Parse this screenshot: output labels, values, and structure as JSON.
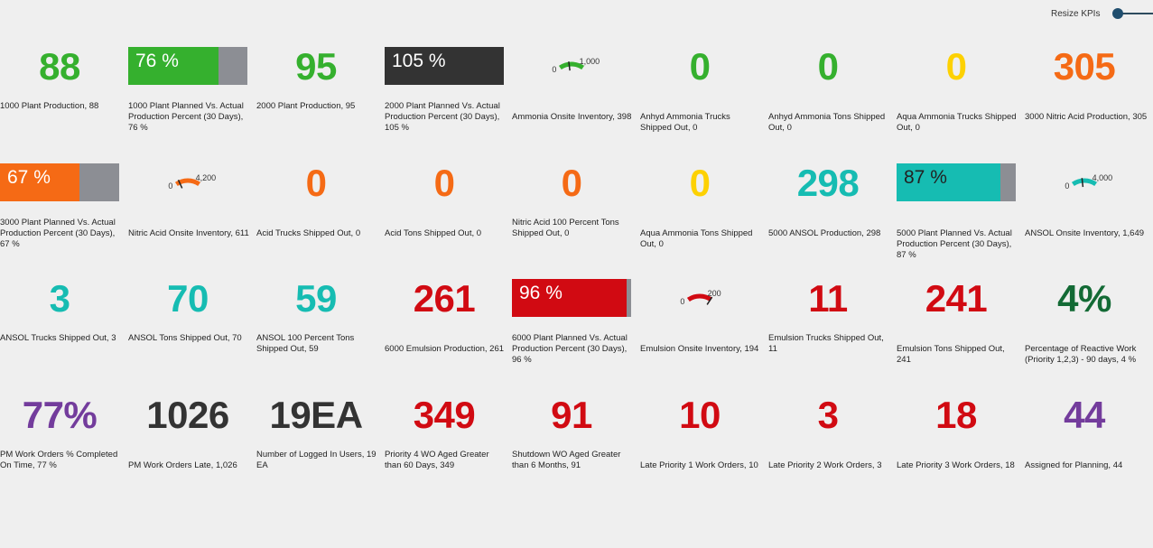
{
  "header": {
    "resize_label": "Resize KPIs"
  },
  "colors": {
    "green": "#35b02e",
    "dark_green": "#136a35",
    "orange": "#f56a15",
    "yellow": "#fdd102",
    "teal": "#16bcb2",
    "red": "#d10a12",
    "dark": "#333333",
    "purple": "#733c9c",
    "bar_track": "#8c8e94"
  },
  "tiles": [
    {
      "id": "t1",
      "type": "number",
      "value": "88",
      "color": "#35b02e",
      "caption": "1000 Plant Production, 88"
    },
    {
      "id": "t2",
      "type": "bar",
      "value": "76 %",
      "percent": 76,
      "color": "#35b02e",
      "caption": "1000 Plant Planned Vs. Actual Production Percent (30 Days), 76 %"
    },
    {
      "id": "t3",
      "type": "number",
      "value": "95",
      "color": "#35b02e",
      "caption": "2000 Plant Production, 95"
    },
    {
      "id": "t4",
      "type": "bar",
      "value": "105 %",
      "percent": 100,
      "color": "#333333",
      "caption": "2000 Plant Planned Vs. Actual Production Percent (30 Days), 105 %"
    },
    {
      "id": "t5",
      "type": "gauge",
      "min": "0",
      "max": "1,000",
      "level": 0.398,
      "color": "#35b02e",
      "caption": "Ammonia Onsite Inventory, 398"
    },
    {
      "id": "t6",
      "type": "number",
      "value": "0",
      "color": "#35b02e",
      "caption": "Anhyd Ammonia Trucks Shipped Out, 0"
    },
    {
      "id": "t7",
      "type": "number",
      "value": "0",
      "color": "#35b02e",
      "caption": "Anhyd Ammonia Tons Shipped Out, 0"
    },
    {
      "id": "t8",
      "type": "number",
      "value": "0",
      "color": "#fdd102",
      "caption": "Aqua Ammonia Trucks Shipped Out, 0"
    },
    {
      "id": "t9",
      "type": "number",
      "value": "305",
      "color": "#f56a15",
      "caption": "3000 Nitric Acid Production, 305"
    },
    {
      "id": "t10",
      "type": "bar",
      "value": "67 %",
      "percent": 67,
      "color": "#f56a15",
      "caption": "3000 Plant Planned Vs. Actual Production Percent (30 Days), 67 %"
    },
    {
      "id": "t11",
      "type": "gauge",
      "min": "0",
      "max": "4,200",
      "level": 0.145,
      "color": "#f56a15",
      "caption": "Nitric Acid Onsite Inventory, 611"
    },
    {
      "id": "t12",
      "type": "number",
      "value": "0",
      "color": "#f56a15",
      "caption": "Acid Trucks Shipped Out, 0"
    },
    {
      "id": "t13",
      "type": "number",
      "value": "0",
      "color": "#f56a15",
      "caption": "Acid Tons Shipped Out, 0"
    },
    {
      "id": "t14",
      "type": "number",
      "value": "0",
      "color": "#f56a15",
      "caption": "Nitric Acid 100 Percent Tons Shipped Out, 0"
    },
    {
      "id": "t15",
      "type": "number",
      "value": "0",
      "color": "#fdd102",
      "caption": "Aqua Ammonia Tons Shipped Out, 0"
    },
    {
      "id": "t16",
      "type": "number",
      "value": "298",
      "color": "#16bcb2",
      "caption": "5000 ANSOL Production, 298"
    },
    {
      "id": "t17",
      "type": "bar",
      "value": "87 %",
      "percent": 87,
      "color": "#16bcb2",
      "text_color": "#222222",
      "caption": "5000 Plant Planned Vs. Actual Production Percent (30 Days), 87 %"
    },
    {
      "id": "t18",
      "type": "gauge",
      "min": "0",
      "max": "4,000",
      "level": 0.412,
      "color": "#16bcb2",
      "caption": "ANSOL Onsite Inventory, 1,649"
    },
    {
      "id": "t19",
      "type": "number",
      "value": "3",
      "color": "#16bcb2",
      "caption": "ANSOL Trucks Shipped Out, 3"
    },
    {
      "id": "t20",
      "type": "number",
      "value": "70",
      "color": "#16bcb2",
      "caption": "ANSOL Tons Shipped Out, 70"
    },
    {
      "id": "t21",
      "type": "number",
      "value": "59",
      "color": "#16bcb2",
      "caption": "ANSOL 100 Percent Tons Shipped Out, 59"
    },
    {
      "id": "t22",
      "type": "number",
      "value": "261",
      "color": "#d10a12",
      "caption": "6000 Emulsion Production, 261"
    },
    {
      "id": "t23",
      "type": "bar",
      "value": "96 %",
      "percent": 96,
      "color": "#d10a12",
      "caption": "6000 Plant Planned Vs. Actual Production Percent (30 Days), 96 %"
    },
    {
      "id": "t24",
      "type": "gauge",
      "min": "0",
      "max": "200",
      "level": 0.97,
      "color": "#d10a12",
      "caption": "Emulsion Onsite Inventory, 194"
    },
    {
      "id": "t25",
      "type": "number",
      "value": "11",
      "color": "#d10a12",
      "caption": "Emulsion Trucks Shipped Out, 11"
    },
    {
      "id": "t26",
      "type": "number",
      "value": "241",
      "color": "#d10a12",
      "caption": "Emulsion Tons Shipped Out, 241"
    },
    {
      "id": "t27",
      "type": "number",
      "value": "4%",
      "color": "#136a35",
      "caption": "Percentage of Reactive Work (Priority 1,2,3) - 90 days, 4 %"
    },
    {
      "id": "t28",
      "type": "number",
      "value": "77%",
      "color": "#733c9c",
      "caption": "PM Work Orders % Completed On Time, 77 %"
    },
    {
      "id": "t29",
      "type": "number",
      "value": "1026",
      "color": "#333333",
      "caption": "PM Work Orders Late, 1,026"
    },
    {
      "id": "t30",
      "type": "number",
      "value": "19EA",
      "color": "#333333",
      "caption": "Number of Logged In Users, 19 EA"
    },
    {
      "id": "t31",
      "type": "number",
      "value": "349",
      "color": "#d10a12",
      "caption": "Priority 4 WO Aged Greater than 60 Days, 349"
    },
    {
      "id": "t32",
      "type": "number",
      "value": "91",
      "color": "#d10a12",
      "caption": "Shutdown WO Aged Greater than 6 Months, 91"
    },
    {
      "id": "t33",
      "type": "number",
      "value": "10",
      "color": "#d10a12",
      "caption": "Late Priority 1 Work Orders, 10"
    },
    {
      "id": "t34",
      "type": "number",
      "value": "3",
      "color": "#d10a12",
      "caption": "Late Priority 2 Work Orders, 3"
    },
    {
      "id": "t35",
      "type": "number",
      "value": "18",
      "color": "#d10a12",
      "caption": "Late Priority 3 Work Orders, 18"
    },
    {
      "id": "t36",
      "type": "number",
      "value": "44",
      "color": "#733c9c",
      "caption": "Assigned for Planning, 44"
    }
  ]
}
